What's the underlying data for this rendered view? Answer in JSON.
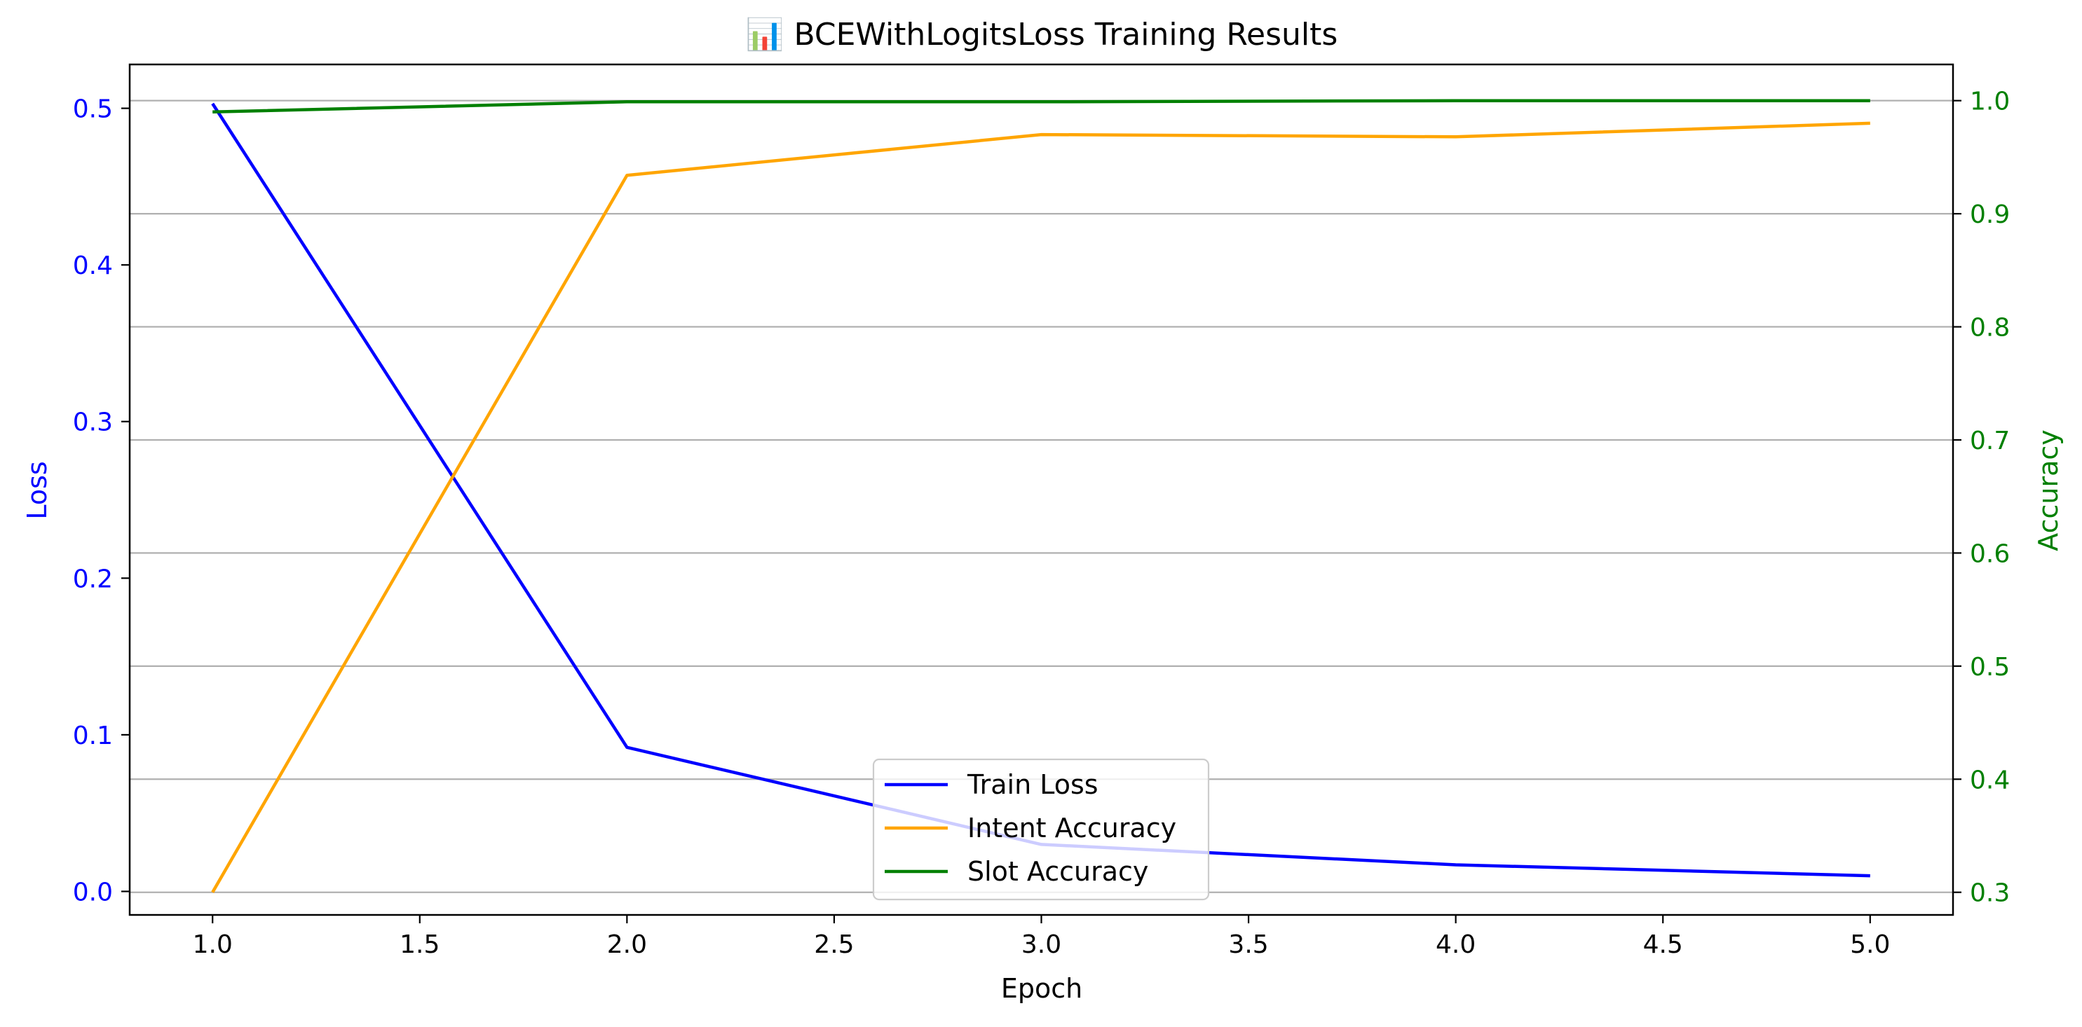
{
  "chart_data": {
    "type": "line",
    "title": "📊 BCEWithLogitsLoss Training Results",
    "xlabel": "Epoch",
    "ylabel_left": "Loss",
    "ylabel_right": "Accuracy",
    "x": [
      1.0,
      2.0,
      3.0,
      4.0,
      5.0
    ],
    "xlim": [
      0.8,
      5.2
    ],
    "ylim_left": [
      -0.015,
      0.528
    ],
    "ylim_right": [
      0.28,
      1.032
    ],
    "x_ticks": [
      "1.0",
      "1.5",
      "2.0",
      "2.5",
      "3.0",
      "3.5",
      "4.0",
      "4.5",
      "5.0"
    ],
    "y_ticks_left": [
      "0.0",
      "0.1",
      "0.2",
      "0.3",
      "0.4",
      "0.5"
    ],
    "y_ticks_right": [
      "0.3",
      "0.4",
      "0.5",
      "0.6",
      "0.7",
      "0.8",
      "0.9",
      "1.0"
    ],
    "grid": "horizontal (right axis)",
    "legend_position": "lower center",
    "colors": {
      "left_axis": "#0000ff",
      "right_axis": "#008000",
      "grid": "#b0b0b0"
    },
    "series": [
      {
        "name": "Train Loss",
        "axis": "left",
        "color": "#0000ff",
        "values": [
          0.503,
          0.092,
          0.03,
          0.017,
          0.01
        ]
      },
      {
        "name": "Intent Accuracy",
        "axis": "right",
        "color": "#ffa500",
        "values": [
          0.3,
          0.934,
          0.97,
          0.968,
          0.98
        ]
      },
      {
        "name": "Slot Accuracy",
        "axis": "right",
        "color": "#008000",
        "values": [
          0.99,
          0.999,
          0.999,
          1.0,
          1.0
        ]
      }
    ]
  }
}
